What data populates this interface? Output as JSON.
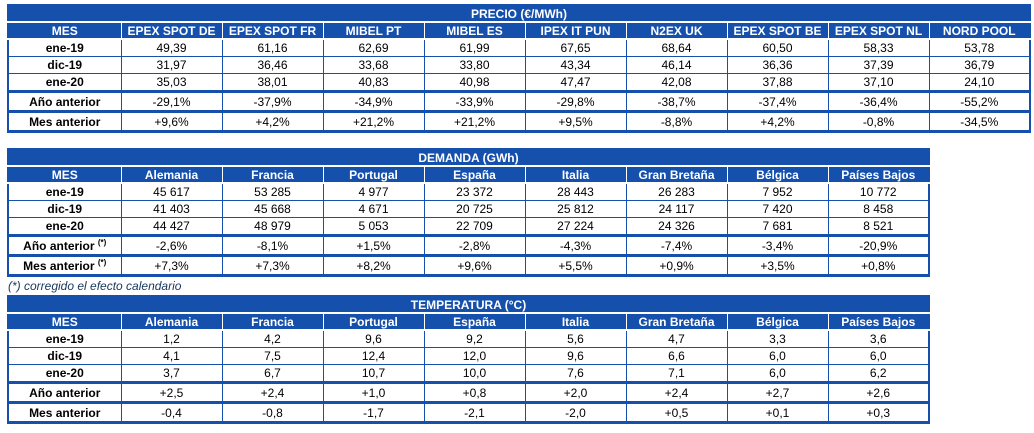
{
  "colors": {
    "header_blue": "#1450AC",
    "grid_blue": "#1450AC",
    "header_text": "#FFFFFF",
    "text": "#000000",
    "footnote": "#17375D"
  },
  "footnote": "(*) corregido el efecto calendario",
  "tables": [
    {
      "id": "precio",
      "title": "PRECIO (€/MWh)",
      "label_header": "MES",
      "columns": [
        "EPEX SPOT DE",
        "EPEX SPOT FR",
        "MIBEL PT",
        "MIBEL ES",
        "IPEX IT PUN",
        "N2EX UK",
        "EPEX SPOT BE",
        "EPEX SPOT NL",
        "NORD POOL"
      ],
      "rows": [
        {
          "label": "ene-19",
          "values": [
            "49,39",
            "61,16",
            "62,69",
            "61,99",
            "67,65",
            "68,64",
            "60,50",
            "58,33",
            "53,78"
          ]
        },
        {
          "label": "dic-19",
          "values": [
            "31,97",
            "36,46",
            "33,68",
            "33,80",
            "43,34",
            "46,14",
            "36,36",
            "37,39",
            "36,79"
          ]
        },
        {
          "label": "ene-20",
          "values": [
            "35,03",
            "38,01",
            "40,83",
            "40,98",
            "47,47",
            "42,08",
            "37,88",
            "37,10",
            "24,10"
          ]
        }
      ],
      "summary": [
        {
          "label": "Año anterior",
          "values": [
            "-29,1%",
            "-37,9%",
            "-34,9%",
            "-33,9%",
            "-29,8%",
            "-38,7%",
            "-37,4%",
            "-36,4%",
            "-55,2%"
          ]
        },
        {
          "label": "Mes anterior",
          "values": [
            "+9,6%",
            "+4,2%",
            "+21,2%",
            "+21,2%",
            "+9,5%",
            "-8,8%",
            "+4,2%",
            "-0,8%",
            "-34,5%"
          ]
        }
      ]
    },
    {
      "id": "demanda",
      "title": "DEMANDA (GWh)",
      "label_header": "MES",
      "columns": [
        "Alemania",
        "Francia",
        "Portugal",
        "España",
        "Italia",
        "Gran Bretaña",
        "Bélgica",
        "Países Bajos"
      ],
      "rows": [
        {
          "label": "ene-19",
          "values": [
            "45 617",
            "53 285",
            "4 977",
            "23 372",
            "28 443",
            "26 283",
            "7 952",
            "10 772"
          ]
        },
        {
          "label": "dic-19",
          "values": [
            "41 403",
            "45 668",
            "4 671",
            "20 725",
            "25 812",
            "24 117",
            "7 420",
            "8 458"
          ]
        },
        {
          "label": "ene-20",
          "values": [
            "44 427",
            "48 979",
            "5 053",
            "22 709",
            "27 224",
            "24 326",
            "7 681",
            "8 521"
          ]
        }
      ],
      "summary": [
        {
          "label": "Año anterior",
          "sup": "(*)",
          "values": [
            "-2,6%",
            "-8,1%",
            "+1,5%",
            "-2,8%",
            "-4,3%",
            "-7,4%",
            "-3,4%",
            "-20,9%"
          ]
        },
        {
          "label": "Mes anterior",
          "sup": "(*)",
          "values": [
            "+7,3%",
            "+7,3%",
            "+8,2%",
            "+9,6%",
            "+5,5%",
            "+0,9%",
            "+3,5%",
            "+0,8%"
          ]
        }
      ]
    },
    {
      "id": "temperatura",
      "title": "TEMPERATURA (°C)",
      "label_header": "MES",
      "columns": [
        "Alemania",
        "Francia",
        "Portugal",
        "España",
        "Italia",
        "Gran Bretaña",
        "Bélgica",
        "Países Bajos"
      ],
      "rows": [
        {
          "label": "ene-19",
          "values": [
            "1,2",
            "4,2",
            "9,6",
            "9,2",
            "5,6",
            "4,7",
            "3,3",
            "3,6"
          ]
        },
        {
          "label": "dic-19",
          "values": [
            "4,1",
            "7,5",
            "12,4",
            "12,0",
            "9,6",
            "6,6",
            "6,0",
            "6,0"
          ]
        },
        {
          "label": "ene-20",
          "values": [
            "3,7",
            "6,7",
            "10,7",
            "10,0",
            "7,6",
            "7,1",
            "6,0",
            "6,2"
          ]
        }
      ],
      "summary": [
        {
          "label": "Año anterior",
          "values": [
            "+2,5",
            "+2,4",
            "+1,0",
            "+0,8",
            "+2,0",
            "+2,4",
            "+2,7",
            "+2,6"
          ]
        },
        {
          "label": "Mes anterior",
          "values": [
            "-0,4",
            "-0,8",
            "-1,7",
            "-2,1",
            "-2,0",
            "+0,5",
            "+0,1",
            "+0,3"
          ]
        }
      ]
    }
  ]
}
